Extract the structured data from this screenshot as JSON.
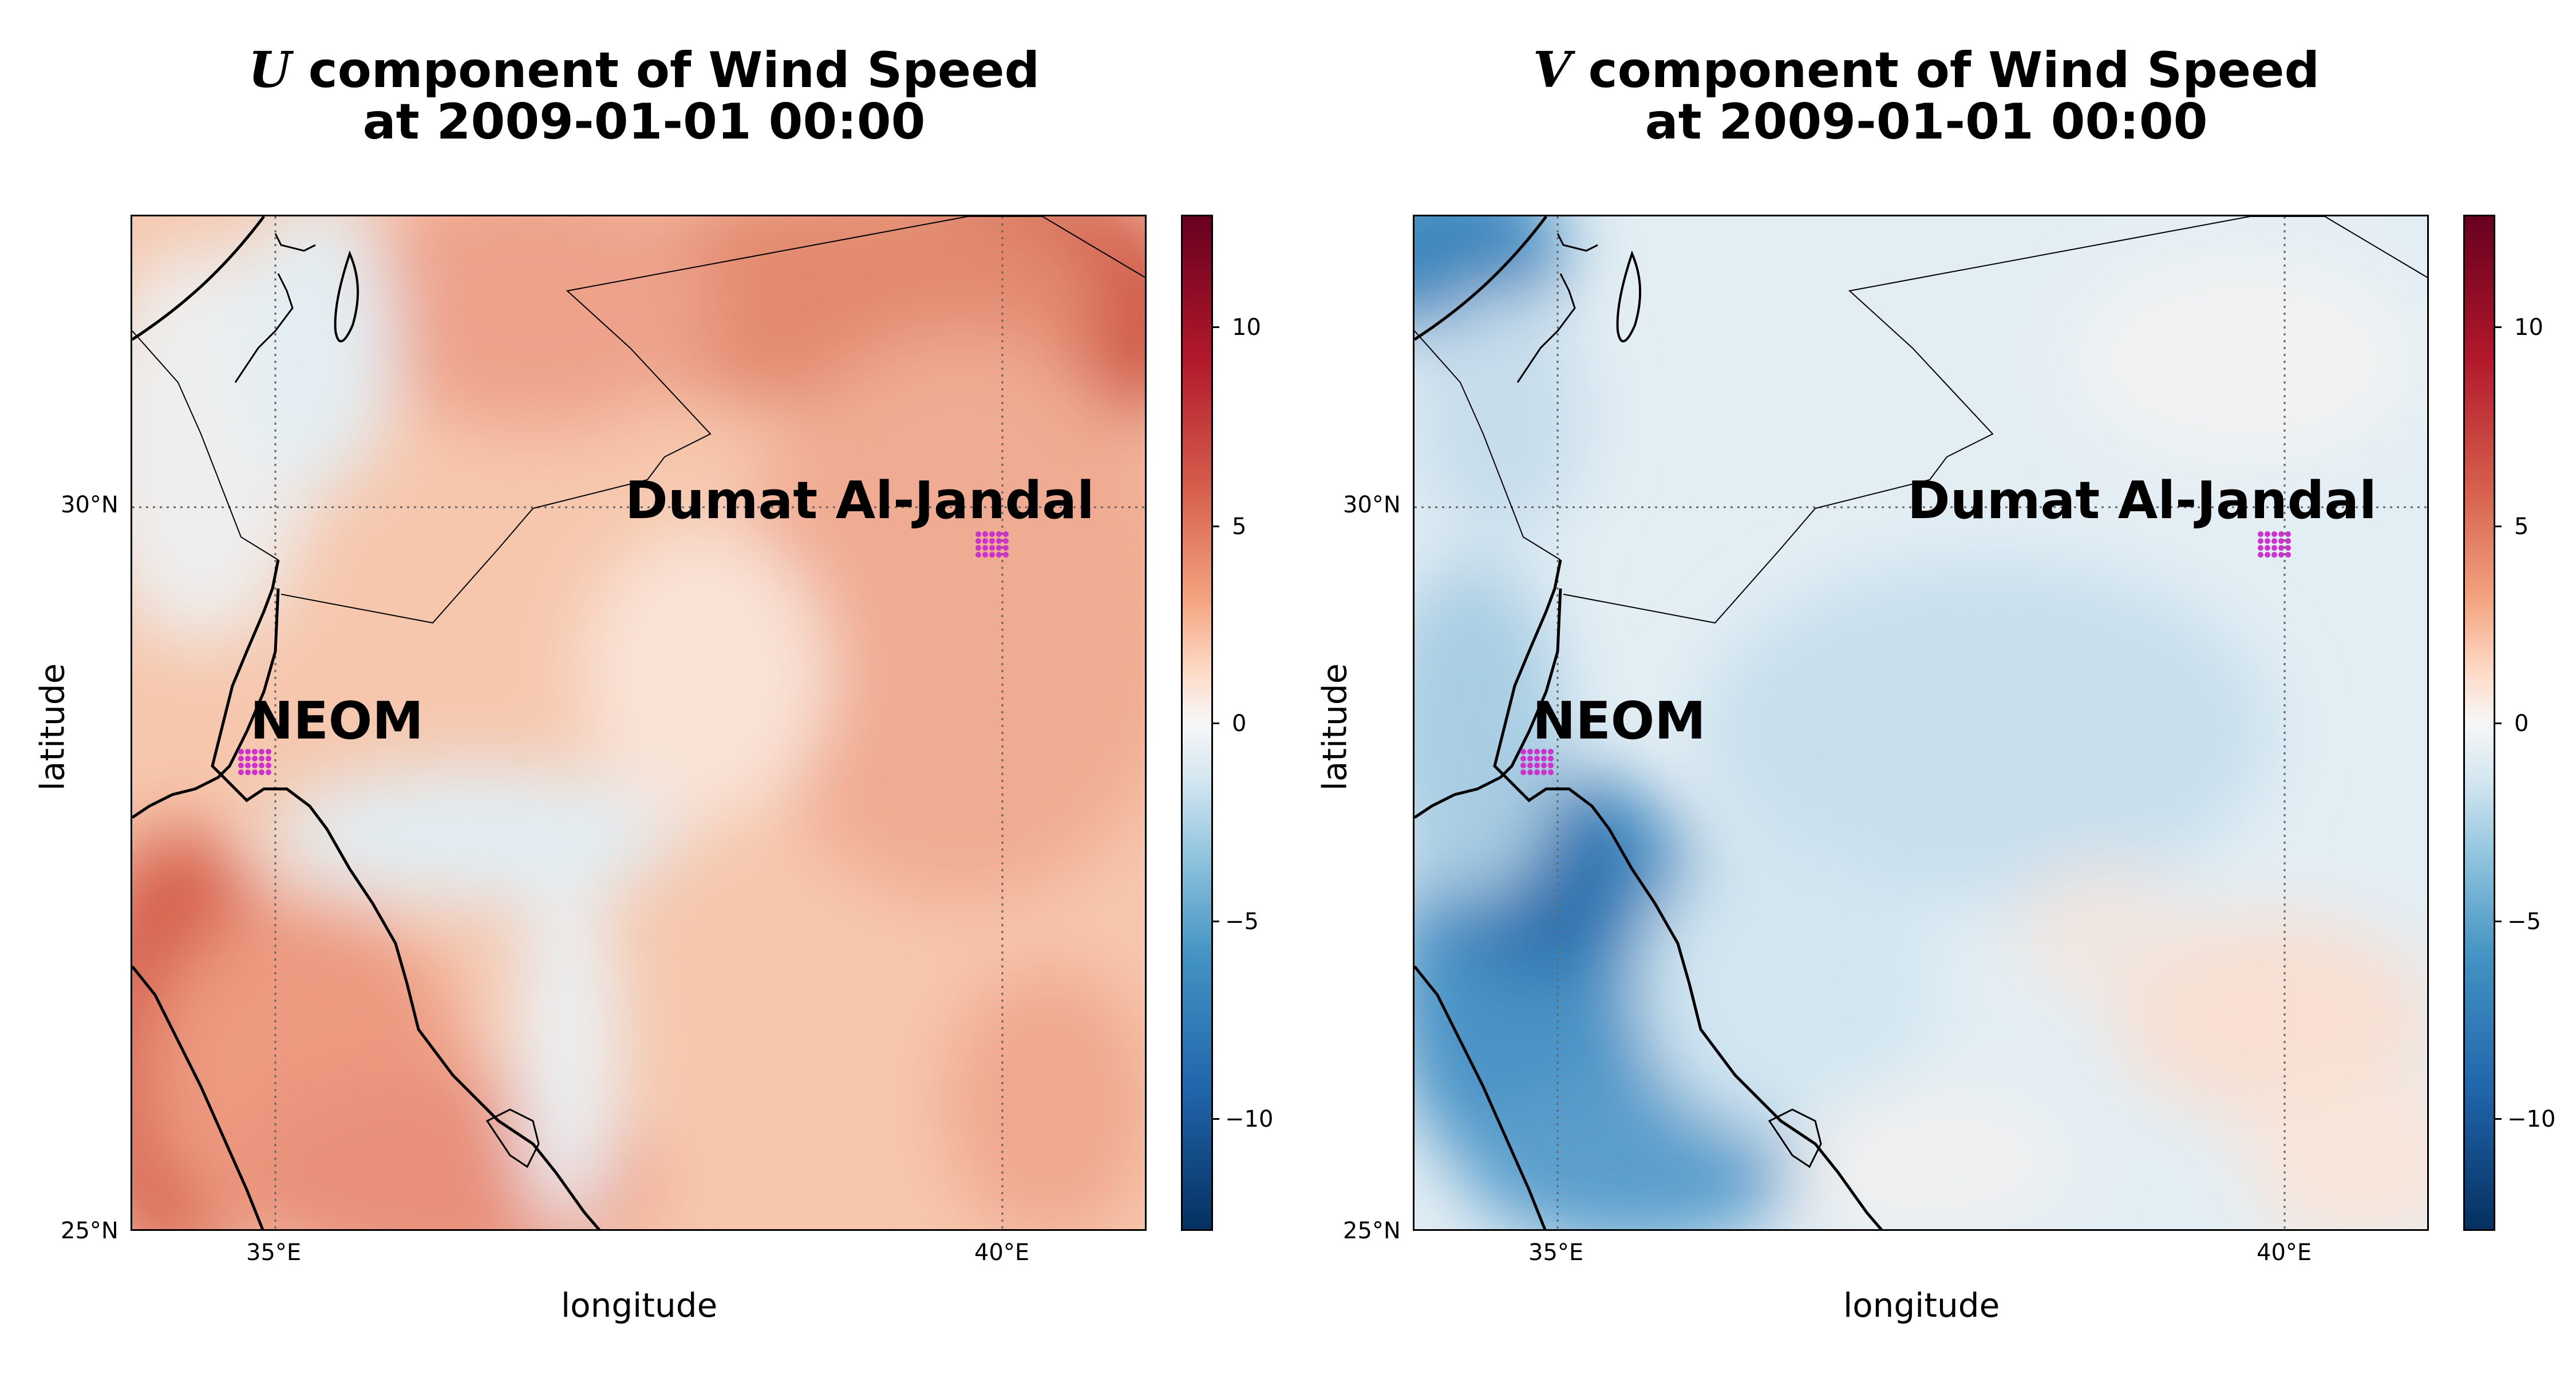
{
  "panels": [
    {
      "id": "u",
      "title_var": "U",
      "title_line1_rest": " component of Wind Speed",
      "title_line2": "at 2009-01-01 00:00",
      "xlabel": "longitude",
      "ylabel": "latitude",
      "lon_ticks": [
        "35°E",
        "40°E"
      ],
      "lat_ticks": [
        "30°N",
        "25°N"
      ],
      "colorbar_ticks": [
        "10",
        "5",
        "0",
        "−5",
        "−10"
      ]
    },
    {
      "id": "v",
      "title_var": "V",
      "title_line1_rest": " component of Wind Speed",
      "title_line2": "at 2009-01-01 00:00",
      "xlabel": "longitude",
      "ylabel": "latitude",
      "lon_ticks": [
        "35°E",
        "40°E"
      ],
      "lat_ticks": [
        "30°N",
        "25°N"
      ],
      "colorbar_ticks": [
        "10",
        "5",
        "0",
        "−5",
        "−10"
      ]
    }
  ],
  "locations": [
    {
      "name": "NEOM",
      "marker_color": "#cc33cc"
    },
    {
      "name": "Dumat Al-Jandal",
      "marker_color": "#cc33cc"
    }
  ],
  "map_extent": {
    "lon": [
      34.0,
      41.0
    ],
    "lat": [
      25.0,
      32.0
    ]
  },
  "colorbar": {
    "cmap": "RdBu_r",
    "range": [
      -13,
      13
    ],
    "low_color": "#08306b",
    "mid_color": "#f7f7f7",
    "high_color": "#67001f"
  }
}
